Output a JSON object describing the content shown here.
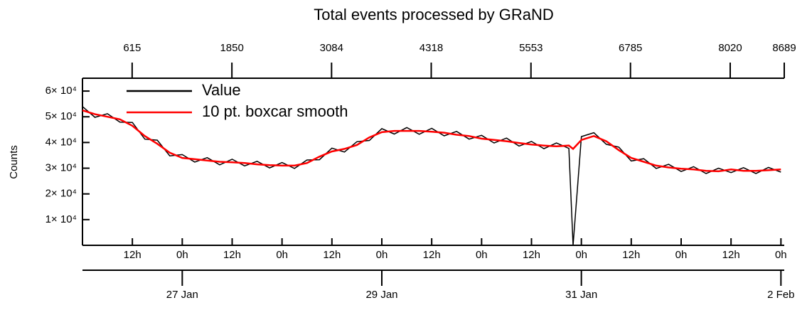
{
  "chart_data": {
    "type": "line",
    "title": "Total events processed by GRaND",
    "ylabel": "Counts",
    "x": [
      "26 Jan 00:00",
      "26 Jan 03:00",
      "26 Jan 06:00",
      "26 Jan 09:00",
      "26 Jan 12:00",
      "26 Jan 15:00",
      "26 Jan 18:00",
      "26 Jan 21:00",
      "27 Jan 00:00",
      "27 Jan 03:00",
      "27 Jan 06:00",
      "27 Jan 09:00",
      "27 Jan 12:00",
      "27 Jan 15:00",
      "27 Jan 18:00",
      "27 Jan 21:00",
      "28 Jan 00:00",
      "28 Jan 03:00",
      "28 Jan 06:00",
      "28 Jan 09:00",
      "28 Jan 12:00",
      "28 Jan 15:00",
      "28 Jan 18:00",
      "28 Jan 21:00",
      "29 Jan 00:00",
      "29 Jan 03:00",
      "29 Jan 06:00",
      "29 Jan 09:00",
      "29 Jan 12:00",
      "29 Jan 15:00",
      "29 Jan 18:00",
      "29 Jan 21:00",
      "30 Jan 00:00",
      "30 Jan 03:00",
      "30 Jan 06:00",
      "30 Jan 09:00",
      "30 Jan 12:00",
      "30 Jan 15:00",
      "30 Jan 18:00",
      "30 Jan 21:00",
      "30 Jan 22:00",
      "31 Jan 00:00",
      "31 Jan 03:00",
      "31 Jan 06:00",
      "31 Jan 09:00",
      "31 Jan 12:00",
      "31 Jan 15:00",
      "31 Jan 18:00",
      "31 Jan 21:00",
      "1 Feb 00:00",
      "1 Feb 03:00",
      "1 Feb 06:00",
      "1 Feb 09:00",
      "1 Feb 12:00",
      "1 Feb 15:00",
      "1 Feb 18:00",
      "1 Feb 21:00",
      "2 Feb 00:00"
    ],
    "series": [
      {
        "name": "Value",
        "color": "#000000",
        "values": [
          54000,
          49800,
          51200,
          47900,
          47800,
          41300,
          40900,
          34800,
          35300,
          32400,
          34100,
          31300,
          33500,
          30900,
          32700,
          30100,
          32200,
          29900,
          33200,
          33300,
          37800,
          36300,
          40300,
          40800,
          45400,
          43300,
          45800,
          43200,
          45500,
          42600,
          44300,
          41300,
          42800,
          39800,
          41700,
          38600,
          40400,
          37600,
          39800,
          37700,
          0,
          42300,
          43800,
          39300,
          38200,
          32800,
          33700,
          29900,
          31500,
          28700,
          30600,
          27900,
          30000,
          28300,
          30200,
          27900,
          30300,
          28500
        ]
      },
      {
        "name": "10 pt. boxcar smooth",
        "color": "#ff0000",
        "values": [
          52500,
          51000,
          50000,
          49000,
          46500,
          42500,
          39500,
          36000,
          34000,
          33500,
          33000,
          32500,
          32300,
          32000,
          31500,
          31200,
          31000,
          31000,
          32000,
          34500,
          36500,
          37500,
          39000,
          42000,
          44000,
          44500,
          44500,
          44500,
          44200,
          43800,
          43000,
          42500,
          41500,
          41000,
          40500,
          39800,
          39200,
          38800,
          38500,
          38800,
          37500,
          41000,
          42500,
          40500,
          37000,
          34000,
          32500,
          31000,
          30300,
          29800,
          29500,
          29000,
          28800,
          29500,
          29000,
          29000,
          29200,
          29500
        ]
      }
    ],
    "xlim": [
      "26 Jan 00:00",
      "2 Feb 00:48"
    ],
    "xticks": [
      {
        "value": "26 Jan 12:00",
        "label": "12h"
      },
      {
        "value": "27 Jan 00:00",
        "label": "0h"
      },
      {
        "value": "27 Jan 12:00",
        "label": "12h"
      },
      {
        "value": "28 Jan 00:00",
        "label": "0h"
      },
      {
        "value": "28 Jan 12:00",
        "label": "12h"
      },
      {
        "value": "29 Jan 00:00",
        "label": "0h"
      },
      {
        "value": "29 Jan 12:00",
        "label": "12h"
      },
      {
        "value": "30 Jan 00:00",
        "label": "0h"
      },
      {
        "value": "30 Jan 12:00",
        "label": "12h"
      },
      {
        "value": "31 Jan 00:00",
        "label": "0h"
      },
      {
        "value": "31 Jan 12:00",
        "label": "12h"
      },
      {
        "value": "1 Feb 00:00",
        "label": "0h"
      },
      {
        "value": "1 Feb 12:00",
        "label": "12h"
      },
      {
        "value": "2 Feb 00:00",
        "label": "0h"
      }
    ],
    "xticks_dates": [
      {
        "value": "27 Jan 00:00",
        "label": "27 Jan"
      },
      {
        "value": "29 Jan 00:00",
        "label": "29 Jan"
      },
      {
        "value": "31 Jan 00:00",
        "label": "31 Jan"
      },
      {
        "value": "2 Feb 00:00",
        "label": "2 Feb"
      }
    ],
    "x2lim": [
      0,
      8689
    ],
    "x2ticks": [
      615,
      1850,
      3084,
      4318,
      5553,
      6785,
      8020,
      8689
    ],
    "ylim": [
      0,
      65000
    ],
    "yticks": [
      {
        "value": 10000,
        "label": "1× 10⁴"
      },
      {
        "value": 20000,
        "label": "2× 10⁴"
      },
      {
        "value": 30000,
        "label": "3× 10⁴"
      },
      {
        "value": 40000,
        "label": "4× 10⁴"
      },
      {
        "value": 50000,
        "label": "5× 10⁴"
      },
      {
        "value": 60000,
        "label": "6× 10⁴"
      }
    ],
    "legend": "upper left"
  }
}
